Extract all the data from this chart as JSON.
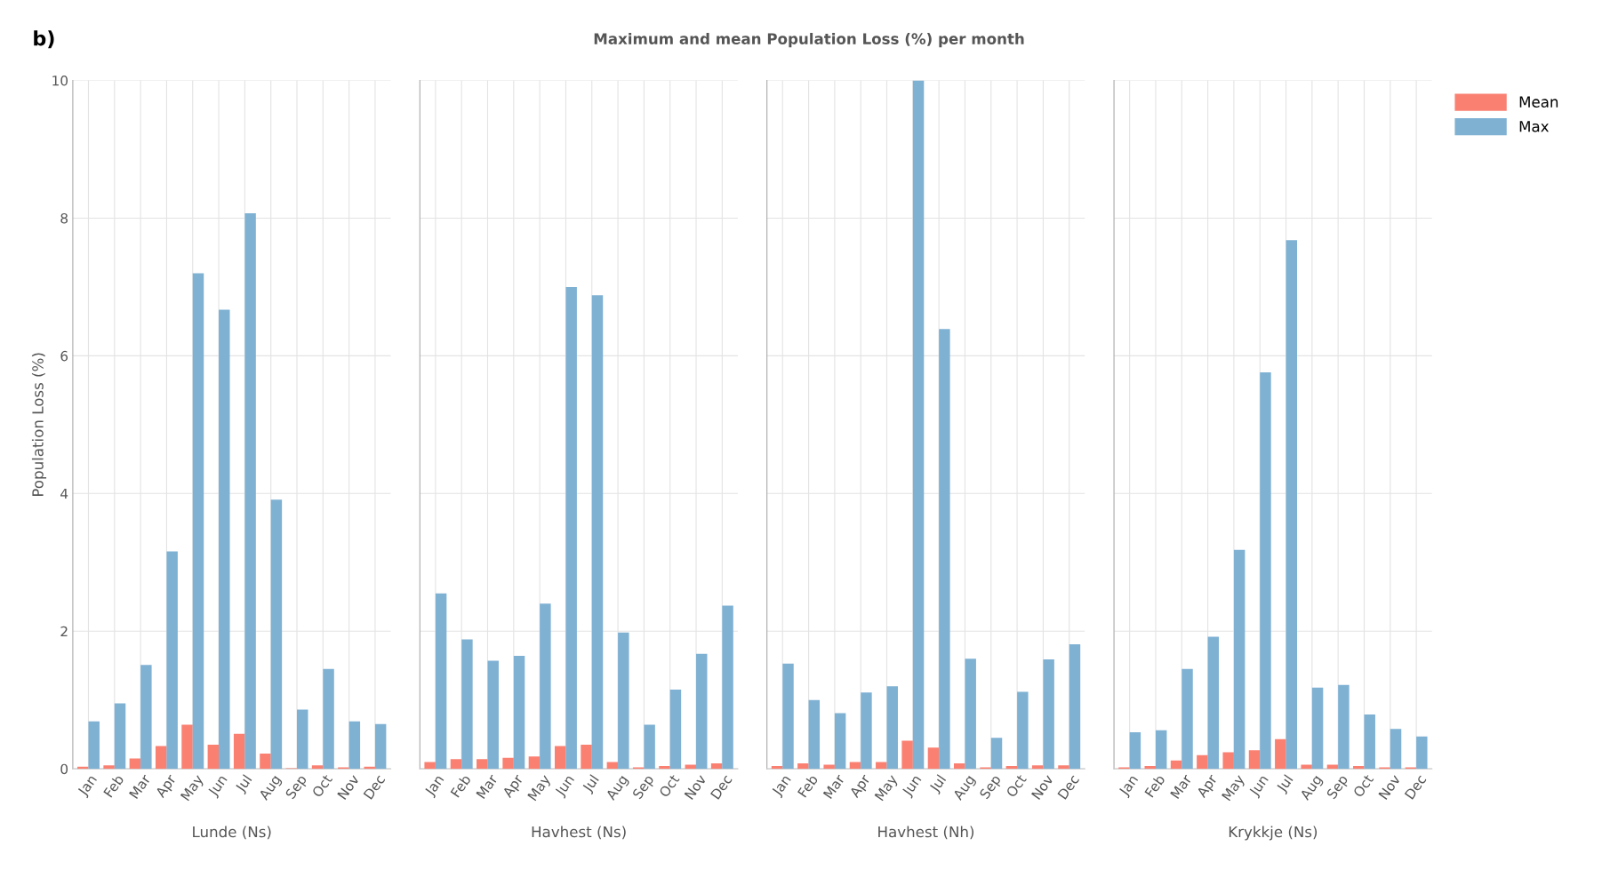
{
  "chart_data": [
    {
      "type": "other",
      "title": "Maximum and mean Population Loss (%) per month",
      "annotations": [
        "b)"
      ]
    },
    {
      "type": "bar",
      "xlabel": "Lunde (Ns)",
      "ylabel": "Population Loss (%)",
      "categories": [
        "Jan",
        "Feb",
        "Mar",
        "Apr",
        "May",
        "Jun",
        "Jul",
        "Aug",
        "Sep",
        "Oct",
        "Nov",
        "Dec"
      ],
      "ylim": [
        0,
        10
      ],
      "yticks": [
        0,
        2,
        4,
        6,
        8,
        10
      ],
      "grid": true,
      "series": [
        {
          "color": "#fa8072",
          "values": [
            0.03,
            0.05,
            0.15,
            0.33,
            0.64,
            0.35,
            0.51,
            0.22,
            0.01,
            0.05,
            0.02,
            0.03
          ]
        },
        {
          "color": "#7fb1d3",
          "values": [
            0.69,
            0.95,
            1.51,
            3.16,
            7.2,
            6.67,
            8.07,
            3.91,
            0.86,
            1.45,
            0.69,
            0.65
          ]
        }
      ]
    },
    {
      "type": "bar",
      "xlabel": "Havhest (Ns)",
      "categories": [
        "Jan",
        "Feb",
        "Mar",
        "Apr",
        "May",
        "Jun",
        "Jul",
        "Aug",
        "Sep",
        "Oct",
        "Nov",
        "Dec"
      ],
      "ylim": [
        0,
        10
      ],
      "yticks": [
        0,
        2,
        4,
        6,
        8,
        10
      ],
      "grid": true,
      "tick_labels": "x",
      "series": [
        {
          "color": "#fa8072",
          "values": [
            0.1,
            0.14,
            0.14,
            0.16,
            0.18,
            0.33,
            0.35,
            0.1,
            0.02,
            0.04,
            0.06,
            0.08
          ]
        },
        {
          "color": "#7fb1d3",
          "values": [
            2.55,
            1.88,
            1.57,
            1.64,
            2.4,
            7.0,
            6.88,
            1.98,
            0.64,
            1.15,
            1.67,
            2.37
          ]
        }
      ]
    },
    {
      "type": "bar",
      "xlabel": "Havhest (Nh)",
      "categories": [
        "Jan",
        "Feb",
        "Mar",
        "Apr",
        "May",
        "Jun",
        "Jul",
        "Aug",
        "Sep",
        "Oct",
        "Nov",
        "Dec"
      ],
      "ylim": [
        0,
        10
      ],
      "yticks": [
        0,
        2,
        4,
        6,
        8,
        10
      ],
      "grid": true,
      "tick_labels": "x",
      "series": [
        {
          "color": "#fa8072",
          "values": [
            0.04,
            0.08,
            0.06,
            0.1,
            0.1,
            0.41,
            0.31,
            0.08,
            0.02,
            0.04,
            0.05,
            0.05
          ]
        },
        {
          "color": "#7fb1d3",
          "values": [
            1.53,
            1.0,
            0.81,
            1.11,
            1.2,
            10.0,
            6.39,
            1.6,
            0.45,
            1.12,
            1.59,
            1.81
          ]
        }
      ]
    },
    {
      "type": "bar",
      "xlabel": "Krykkje (Ns)",
      "categories": [
        "Jan",
        "Feb",
        "Mar",
        "Apr",
        "May",
        "Jun",
        "Jul",
        "Aug",
        "Sep",
        "Oct",
        "Nov",
        "Dec"
      ],
      "ylim": [
        0,
        10
      ],
      "yticks": [
        0,
        2,
        4,
        6,
        8,
        10
      ],
      "grid": true,
      "tick_labels": "x",
      "legend": "top right",
      "series": [
        {
          "name": "Mean",
          "color": "#fa8072",
          "values": [
            0.02,
            0.04,
            0.12,
            0.2,
            0.24,
            0.27,
            0.43,
            0.06,
            0.06,
            0.04,
            0.02,
            0.02
          ]
        },
        {
          "name": "Max",
          "color": "#7fb1d3",
          "values": [
            0.53,
            0.56,
            1.45,
            1.92,
            3.18,
            5.76,
            7.68,
            1.18,
            1.22,
            0.79,
            0.58,
            0.47
          ]
        }
      ]
    }
  ]
}
